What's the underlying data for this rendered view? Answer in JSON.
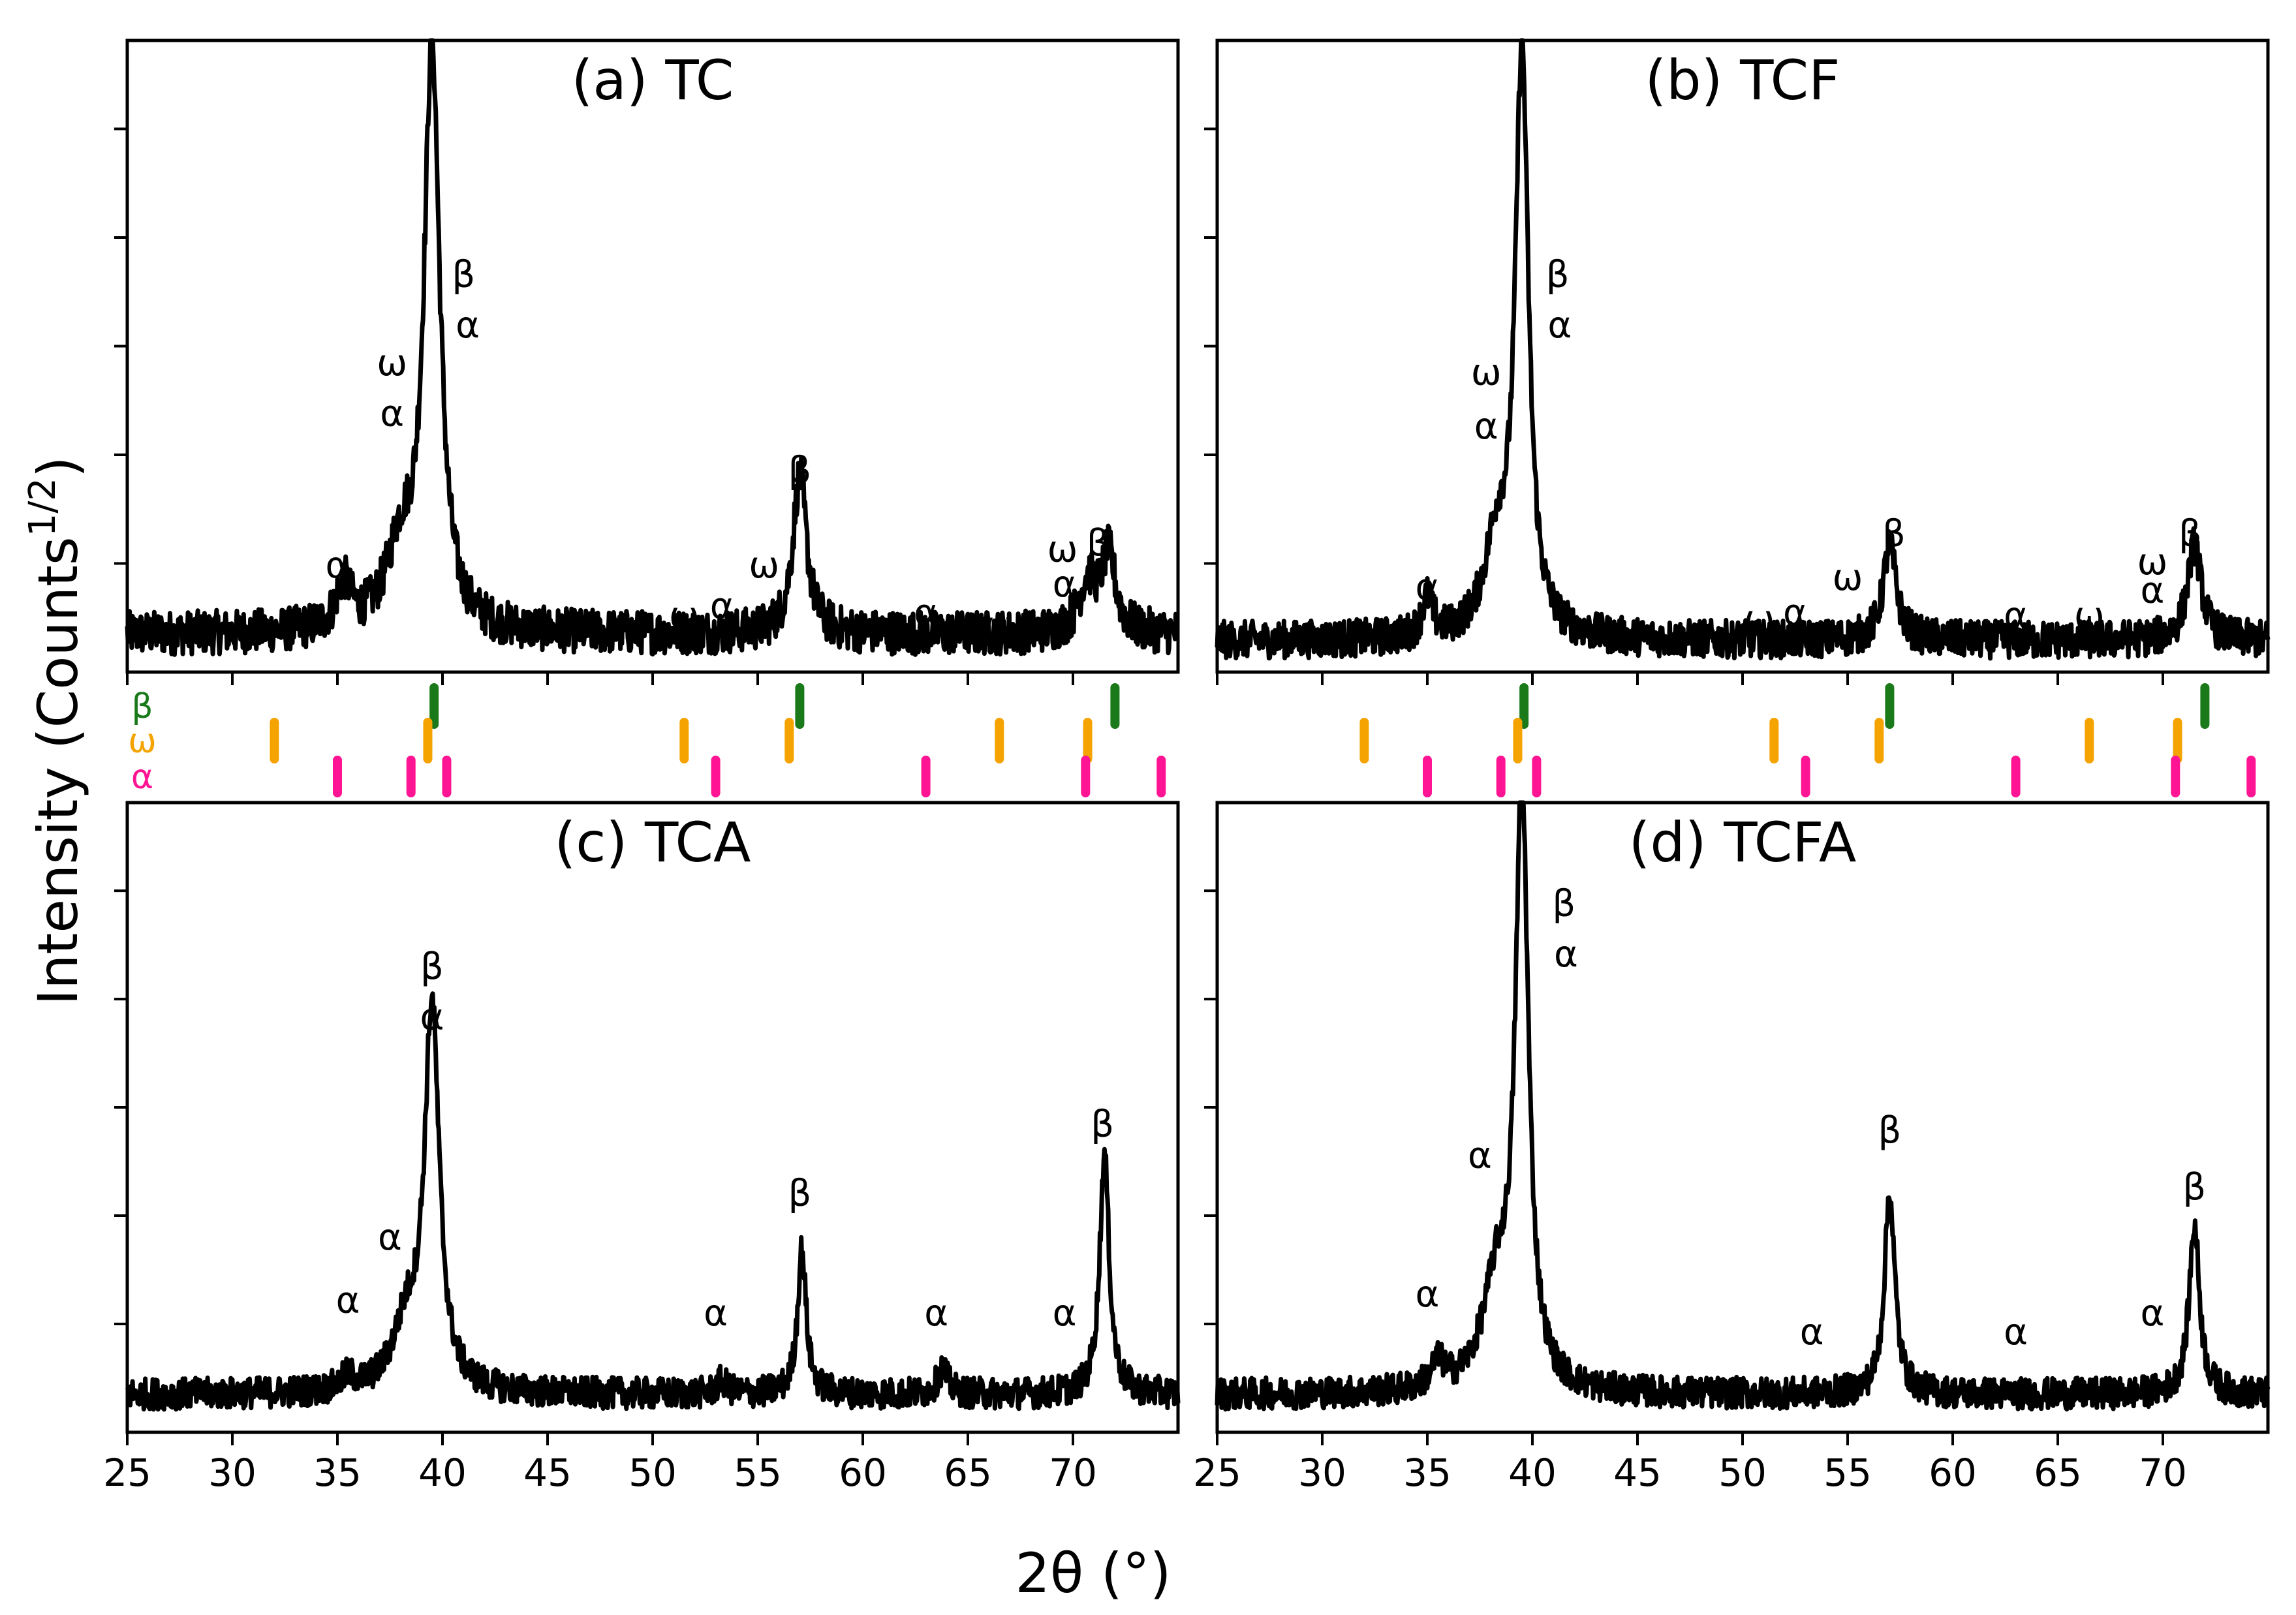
{
  "chart_data": [
    {
      "panel": "a",
      "type": "line",
      "title": "(a) TC",
      "xlabel": "",
      "ylabel": "",
      "xlim": [
        25,
        75
      ],
      "ylim": [
        0,
        100
      ],
      "baseline": 6.0,
      "noise": 3.5,
      "peaks": [
        {
          "center": 35.3,
          "height": 7,
          "width": 0.9
        },
        {
          "center": 39.5,
          "height": 92,
          "width": 0.9
        },
        {
          "center": 38.0,
          "height": 12,
          "width": 1.6
        },
        {
          "center": 57.0,
          "height": 25,
          "width": 0.8
        },
        {
          "center": 70.7,
          "height": 8,
          "width": 1.0
        },
        {
          "center": 71.7,
          "height": 12,
          "width": 0.8
        }
      ],
      "annotations": [
        {
          "text": "α",
          "x": 35.0,
          "y": 15
        },
        {
          "text": "ω",
          "x": 37.6,
          "y": 47
        },
        {
          "text": "α",
          "x": 37.6,
          "y": 39
        },
        {
          "text": "β",
          "x": 41.0,
          "y": 61
        },
        {
          "text": "α",
          "x": 41.2,
          "y": 53
        },
        {
          "text": "ω",
          "x": 51.5,
          "y": 7
        },
        {
          "text": "α",
          "x": 53.3,
          "y": 8.5
        },
        {
          "text": "ω",
          "x": 55.3,
          "y": 15
        },
        {
          "text": "β",
          "x": 57.0,
          "y": 30
        },
        {
          "text": "α",
          "x": 63.0,
          "y": 7.5
        },
        {
          "text": "ω",
          "x": 66.5,
          "y": 5.5
        },
        {
          "text": "ω",
          "x": 69.5,
          "y": 17.5
        },
        {
          "text": "α",
          "x": 69.6,
          "y": 12
        },
        {
          "text": "β",
          "x": 71.2,
          "y": 18.5
        }
      ]
    },
    {
      "panel": "b",
      "type": "line",
      "title": "(b) TCF",
      "xlabel": "",
      "ylabel": "",
      "xlim": [
        25,
        75
      ],
      "ylim": [
        0,
        100
      ],
      "baseline": 5.0,
      "noise": 3.0,
      "peaks": [
        {
          "center": 35.0,
          "height": 6,
          "width": 0.6
        },
        {
          "center": 39.5,
          "height": 92,
          "width": 0.75
        },
        {
          "center": 38.3,
          "height": 14,
          "width": 1.4
        },
        {
          "center": 57.0,
          "height": 15,
          "width": 0.75
        },
        {
          "center": 71.5,
          "height": 15,
          "width": 0.8
        }
      ],
      "annotations": [
        {
          "text": "α",
          "x": 35.0,
          "y": 11.5
        },
        {
          "text": "ω",
          "x": 37.8,
          "y": 45.5
        },
        {
          "text": "α",
          "x": 37.8,
          "y": 37
        },
        {
          "text": "β",
          "x": 41.2,
          "y": 61
        },
        {
          "text": "α",
          "x": 41.3,
          "y": 53
        },
        {
          "text": "ω",
          "x": 50.8,
          "y": 6.5
        },
        {
          "text": "α",
          "x": 52.5,
          "y": 7.5
        },
        {
          "text": "ω",
          "x": 55.0,
          "y": 13
        },
        {
          "text": "β",
          "x": 57.2,
          "y": 20
        },
        {
          "text": "α",
          "x": 63.0,
          "y": 7
        },
        {
          "text": "ω",
          "x": 66.5,
          "y": 7
        },
        {
          "text": "ω",
          "x": 69.5,
          "y": 15.5
        },
        {
          "text": "α",
          "x": 69.5,
          "y": 11
        },
        {
          "text": "β",
          "x": 71.3,
          "y": 20
        }
      ]
    },
    {
      "panel": "c",
      "type": "line",
      "title": "(c) TCA",
      "xlabel": "",
      "ylabel": "",
      "xlim": [
        25,
        75
      ],
      "ylim": [
        0,
        100
      ],
      "baseline": 6.0,
      "noise": 2.5,
      "peaks": [
        {
          "center": 35.5,
          "height": 2,
          "width": 0.8
        },
        {
          "center": 39.5,
          "height": 60,
          "width": 0.85
        },
        {
          "center": 38.3,
          "height": 10,
          "width": 1.6
        },
        {
          "center": 53.3,
          "height": 2,
          "width": 0.6
        },
        {
          "center": 57.1,
          "height": 23,
          "width": 0.5
        },
        {
          "center": 63.8,
          "height": 4,
          "width": 0.6
        },
        {
          "center": 71.5,
          "height": 38,
          "width": 0.55
        }
      ],
      "annotations": [
        {
          "text": "α",
          "x": 35.5,
          "y": 19
        },
        {
          "text": "α",
          "x": 37.5,
          "y": 29
        },
        {
          "text": "β",
          "x": 39.5,
          "y": 72
        },
        {
          "text": "α",
          "x": 39.5,
          "y": 64
        },
        {
          "text": "α",
          "x": 53.0,
          "y": 17
        },
        {
          "text": "β",
          "x": 57.0,
          "y": 36
        },
        {
          "text": "α",
          "x": 63.5,
          "y": 17
        },
        {
          "text": "α",
          "x": 69.6,
          "y": 17
        },
        {
          "text": "β",
          "x": 71.4,
          "y": 47
        }
      ]
    },
    {
      "panel": "d",
      "type": "line",
      "title": "(d) TCFA",
      "xlabel": "",
      "ylabel": "",
      "xlim": [
        25,
        75
      ],
      "ylim": [
        0,
        100
      ],
      "baseline": 6.0,
      "noise": 2.5,
      "peaks": [
        {
          "center": 35.5,
          "height": 4,
          "width": 0.8
        },
        {
          "center": 39.5,
          "height": 94,
          "width": 0.75
        },
        {
          "center": 38.3,
          "height": 16,
          "width": 1.6
        },
        {
          "center": 57.0,
          "height": 32,
          "width": 0.6
        },
        {
          "center": 71.5,
          "height": 27,
          "width": 0.6
        }
      ],
      "annotations": [
        {
          "text": "α",
          "x": 35.0,
          "y": 20
        },
        {
          "text": "α",
          "x": 37.5,
          "y": 42
        },
        {
          "text": "β",
          "x": 41.5,
          "y": 82
        },
        {
          "text": "α",
          "x": 41.6,
          "y": 74
        },
        {
          "text": "α",
          "x": 53.3,
          "y": 14
        },
        {
          "text": "β",
          "x": 57.0,
          "y": 46
        },
        {
          "text": "α",
          "x": 63.0,
          "y": 14
        },
        {
          "text": "α",
          "x": 69.5,
          "y": 17
        },
        {
          "text": "β",
          "x": 71.5,
          "y": 37
        }
      ]
    }
  ],
  "reference_ticks": {
    "phases": [
      {
        "name": "β",
        "color": "#1a7a1a",
        "positions": [
          39.6,
          57.0,
          72.0
        ]
      },
      {
        "name": "ω",
        "color": "#f5a300",
        "positions": [
          32.0,
          39.3,
          51.5,
          56.5,
          66.5,
          70.7
        ]
      },
      {
        "name": "α",
        "color": "#ff1493",
        "positions": [
          35.0,
          38.5,
          40.2,
          53.0,
          63.0,
          70.6,
          74.2
        ]
      }
    ]
  },
  "x_ticks": [
    25,
    30,
    35,
    40,
    45,
    50,
    55,
    60,
    65,
    70
  ],
  "xlabel": "2θ (°)",
  "ylabel_main": "Intensity (Counts",
  "ylabel_sup": "1/2",
  "ylabel_close": ")"
}
